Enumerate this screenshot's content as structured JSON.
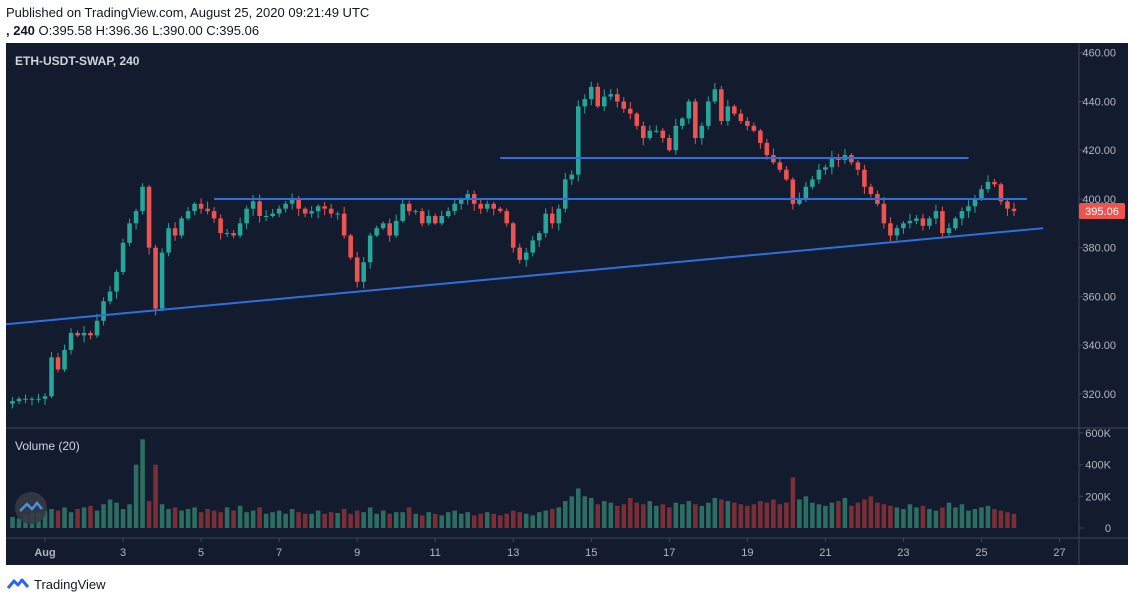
{
  "header": {
    "published": "Published on TradingView.com, August 25, 2020 09:21:49 UTC",
    "interval": ", 240",
    "o_label": "O:",
    "o_value": "395.58",
    "h_label": "H:",
    "h_value": "396.36",
    "l_label": "L:",
    "l_value": "390.00",
    "c_label": "C:",
    "c_value": "395.06"
  },
  "footer": {
    "brand": "TradingView",
    "logo_icon": "tradingview-logo-icon"
  },
  "colors": {
    "background": "#131b2f",
    "up": "#26a69a",
    "down": "#ef5350",
    "vol_up": "#2c6e62",
    "vol_down": "#7a2f37",
    "trendline": "#2f6fdc",
    "price_tag": "#ef5350",
    "axis_text": "#b2b5be"
  },
  "chart_data": {
    "type": "candlestick",
    "symbol_label": "ETH-USDT-SWAP, 240",
    "volume_label": "Volume (20)",
    "last_price": "395.06",
    "y_ticks": [
      "460.00",
      "440.00",
      "420.00",
      "400.00",
      "380.00",
      "360.00",
      "340.00",
      "320.00"
    ],
    "volume_ticks": [
      "600K",
      "400K",
      "200K",
      "0"
    ],
    "x_ticks": [
      "Aug",
      "3",
      "5",
      "7",
      "9",
      "11",
      "13",
      "15",
      "17",
      "19",
      "21",
      "23",
      "25",
      "27"
    ],
    "ylim": [
      306,
      464
    ],
    "volume_ylim": [
      0,
      600000
    ],
    "xlim": [
      "2020-07-31T00:00",
      "2020-08-27T12:00"
    ],
    "candle_period_hours": 4,
    "candles_start": "2020-07-31T04:00",
    "closes": [
      317,
      318,
      318,
      318,
      318,
      319,
      335,
      330,
      338,
      345,
      344,
      345,
      344,
      350,
      358,
      362,
      370,
      382,
      390,
      395,
      405,
      380,
      355,
      378,
      388,
      385,
      392,
      395,
      398,
      396,
      395,
      392,
      386,
      386,
      385,
      390,
      396,
      399,
      393,
      393,
      394,
      396,
      398,
      400,
      396,
      394,
      395,
      397,
      396,
      394,
      394,
      385,
      376,
      366,
      374,
      385,
      388,
      390,
      385,
      391,
      398,
      395,
      395,
      390,
      393,
      390,
      393,
      395,
      398,
      400,
      402,
      398,
      396,
      398,
      396,
      395,
      390,
      380,
      375,
      378,
      383,
      386,
      394,
      390,
      396,
      408,
      410,
      438,
      441,
      446,
      438,
      442,
      443,
      440,
      437,
      435,
      430,
      425,
      428,
      428,
      425,
      420,
      430,
      433,
      440,
      425,
      430,
      440,
      445,
      432,
      438,
      435,
      432,
      430,
      428,
      423,
      418,
      415,
      412,
      408,
      398,
      400,
      405,
      408,
      412,
      413,
      417,
      416,
      418,
      415,
      412,
      405,
      402,
      398,
      390,
      385,
      388,
      390,
      391,
      392,
      389,
      392,
      395,
      386,
      388,
      392,
      395,
      397,
      400,
      404,
      407,
      406,
      399,
      396,
      395.06
    ],
    "volumes": [
      70000,
      60000,
      80000,
      90000,
      100000,
      110000,
      120000,
      110000,
      130000,
      100000,
      120000,
      130000,
      140000,
      110000,
      150000,
      180000,
      160000,
      120000,
      150000,
      400000,
      560000,
      170000,
      400000,
      150000,
      120000,
      130000,
      110000,
      120000,
      130000,
      100000,
      120000,
      110000,
      100000,
      130000,
      110000,
      140000,
      100000,
      110000,
      130000,
      90000,
      100000,
      110000,
      90000,
      120000,
      100000,
      90000,
      90000,
      110000,
      90000,
      100000,
      95000,
      120000,
      90000,
      110000,
      100000,
      130000,
      90000,
      110000,
      90000,
      100000,
      100000,
      130000,
      90000,
      80000,
      100000,
      90000,
      80000,
      100000,
      110000,
      90000,
      100000,
      80000,
      90000,
      100000,
      90000,
      80000,
      90000,
      110000,
      100000,
      90000,
      80000,
      100000,
      110000,
      120000,
      130000,
      170000,
      200000,
      250000,
      200000,
      190000,
      150000,
      170000,
      160000,
      140000,
      150000,
      190000,
      160000,
      150000,
      170000,
      140000,
      150000,
      130000,
      160000,
      150000,
      170000,
      150000,
      140000,
      160000,
      190000,
      180000,
      170000,
      160000,
      150000,
      140000,
      150000,
      170000,
      160000,
      180000,
      150000,
      160000,
      320000,
      180000,
      200000,
      160000,
      150000,
      140000,
      160000,
      170000,
      190000,
      140000,
      160000,
      180000,
      200000,
      160000,
      150000,
      140000,
      130000,
      120000,
      150000,
      130000,
      140000,
      120000,
      110000,
      130000,
      160000,
      130000,
      150000,
      110000,
      120000,
      130000,
      140000,
      120000,
      110000,
      100000,
      90000
    ],
    "lines": [
      {
        "name": "ascending-support",
        "from": [
          "2020-07-31T00:00",
          348.6
        ],
        "to": [
          "2020-08-26T14:00",
          388.0
        ]
      },
      {
        "name": "horizontal-400",
        "from": [
          "2020-08-05T08:00",
          400.0
        ],
        "to": [
          "2020-08-26T04:00",
          400.0
        ]
      },
      {
        "name": "horizontal-417",
        "from": [
          "2020-08-12T16:00",
          416.8
        ],
        "to": [
          "2020-08-24T16:00",
          416.8
        ]
      }
    ]
  }
}
